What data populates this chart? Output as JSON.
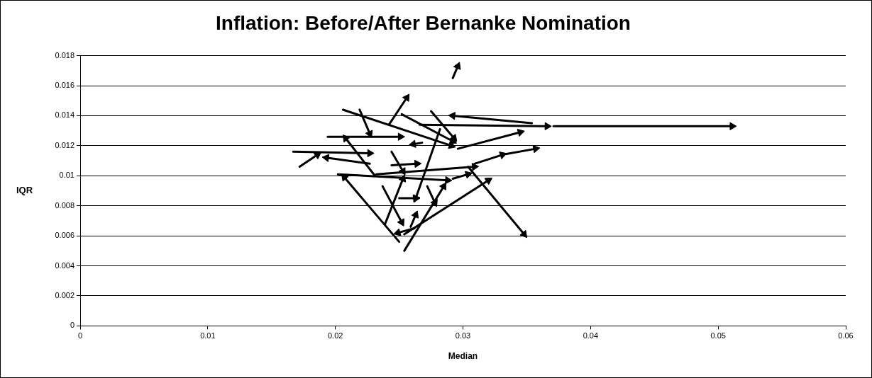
{
  "chart_data": {
    "type": "line",
    "title": "Inflation: Before/After Bernanke Nomination",
    "xlabel": "Median",
    "ylabel": "IQR",
    "xlim": [
      0,
      0.06
    ],
    "xticks": [
      0,
      0.01,
      0.02,
      0.03,
      0.04,
      0.05,
      0.06
    ],
    "ylim": [
      0,
      0.018
    ],
    "yticks": [
      0,
      0.002,
      0.004,
      0.006,
      0.008,
      0.01,
      0.012,
      0.014,
      0.016,
      0.018
    ],
    "grid": "y",
    "legend": false,
    "marker": "triangle",
    "line_style": "solid",
    "series": [
      {
        "color": "#000000",
        "x": [
          0.0266,
          0.0366
        ],
        "values": [
          0.0134,
          0.0133
        ]
      },
      {
        "color": "#000000",
        "x": [
          0.0371,
          0.0511
        ],
        "values": [
          0.0133,
          0.0133
        ]
      },
      {
        "color": "#000000",
        "x": [
          0.0354,
          0.0292
        ],
        "values": [
          0.0135,
          0.014
        ]
      },
      {
        "color": "#000000",
        "x": [
          0.0206,
          0.0291
        ],
        "values": [
          0.0144,
          0.012
        ]
      },
      {
        "color": "#000000",
        "x": [
          0.0296,
          0.0345
        ],
        "values": [
          0.0118,
          0.0129
        ]
      },
      {
        "color": "#000000",
        "x": [
          0.0242,
          0.0256
        ],
        "values": [
          0.0134,
          0.0152
        ]
      },
      {
        "color": "#000000",
        "x": [
          0.0252,
          0.0292
        ],
        "values": [
          0.0141,
          0.0123
        ]
      },
      {
        "color": "#000000",
        "x": [
          0.0275,
          0.0293
        ],
        "values": [
          0.0143,
          0.0125
        ]
      },
      {
        "color": "#000000",
        "x": [
          0.0219,
          0.0227
        ],
        "values": [
          0.0144,
          0.0128
        ]
      },
      {
        "color": "#000000",
        "x": [
          0.0194,
          0.0251
        ],
        "values": [
          0.0126,
          0.0126
        ]
      },
      {
        "color": "#000000",
        "x": [
          0.0167,
          0.0227
        ],
        "values": [
          0.0116,
          0.0115
        ]
      },
      {
        "color": "#000000",
        "x": [
          0.0172,
          0.0186
        ],
        "values": [
          0.0106,
          0.0114
        ]
      },
      {
        "color": "#000000",
        "x": [
          0.0227,
          0.0193
        ],
        "values": [
          0.0108,
          0.0112
        ]
      },
      {
        "color": "#000000",
        "x": [
          0.0231,
          0.0208
        ],
        "values": [
          0.01,
          0.0125
        ]
      },
      {
        "color": "#000000",
        "x": [
          0.0202,
          0.0288
        ],
        "values": [
          0.0101,
          0.0097
        ]
      },
      {
        "color": "#000000",
        "x": [
          0.0292,
          0.0304
        ],
        "values": [
          0.0098,
          0.0101
        ]
      },
      {
        "color": "#000000",
        "x": [
          0.0232,
          0.0309
        ],
        "values": [
          0.0101,
          0.0106
        ]
      },
      {
        "color": "#000000",
        "x": [
          0.0304,
          0.0348
        ],
        "values": [
          0.0106,
          0.0061
        ]
      },
      {
        "color": "#000000",
        "x": [
          0.0309,
          0.0331
        ],
        "values": [
          0.0108,
          0.0114
        ]
      },
      {
        "color": "#000000",
        "x": [
          0.0331,
          0.0357
        ],
        "values": [
          0.0114,
          0.0118
        ]
      },
      {
        "color": "#000000",
        "x": [
          0.0282,
          0.0263
        ],
        "values": [
          0.0131,
          0.0085
        ]
      },
      {
        "color": "#000000",
        "x": [
          0.0244,
          0.0253
        ],
        "values": [
          0.0116,
          0.0103
        ]
      },
      {
        "color": "#000000",
        "x": [
          0.0244,
          0.0264
        ],
        "values": [
          0.0107,
          0.0108
        ]
      },
      {
        "color": "#000000",
        "x": [
          0.025,
          0.0263
        ],
        "values": [
          0.0085,
          0.0085
        ]
      },
      {
        "color": "#000000",
        "x": [
          0.0237,
          0.0252
        ],
        "values": [
          0.0093,
          0.0069
        ]
      },
      {
        "color": "#000000",
        "x": [
          0.0239,
          0.0253
        ],
        "values": [
          0.0068,
          0.0098
        ]
      },
      {
        "color": "#000000",
        "x": [
          0.025,
          0.0207
        ],
        "values": [
          0.0056,
          0.0099
        ]
      },
      {
        "color": "#000000",
        "x": [
          0.0254,
          0.0285
        ],
        "values": [
          0.005,
          0.0093
        ]
      },
      {
        "color": "#000000",
        "x": [
          0.0254,
          0.032
        ],
        "values": [
          0.0061,
          0.0097
        ]
      },
      {
        "color": "#000000",
        "x": [
          0.0272,
          0.0278
        ],
        "values": [
          0.0093,
          0.0082
        ]
      },
      {
        "color": "#000000",
        "x": [
          0.0259,
          0.0263
        ],
        "values": [
          0.0066,
          0.0074
        ]
      },
      {
        "color": "#000000",
        "x": [
          0.0262,
          0.0249
        ],
        "values": [
          0.0065,
          0.0062
        ]
      },
      {
        "color": "#000000",
        "x": [
          0.0292,
          0.0296
        ],
        "values": [
          0.0165,
          0.0173
        ]
      },
      {
        "color": "#000000",
        "x": [
          0.0268,
          0.0261
        ],
        "values": [
          0.0122,
          0.0121
        ]
      }
    ]
  }
}
